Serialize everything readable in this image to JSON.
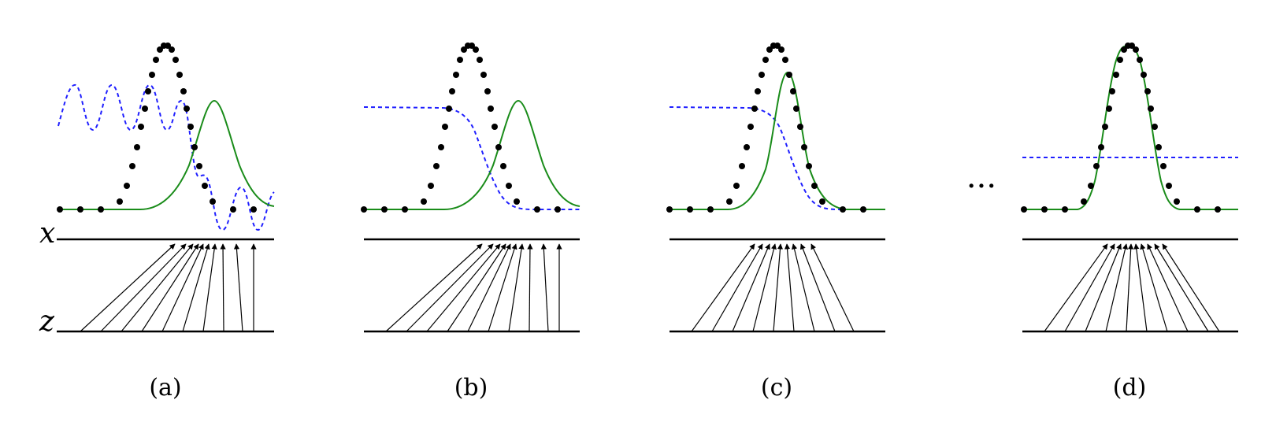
{
  "axis_labels": {
    "x": "x",
    "z": "z"
  },
  "ellipsis": "···",
  "colors": {
    "data_points": "#000000",
    "generator_density": "#1a8c1a",
    "discriminator": "#1f1fff",
    "lines": "#000000"
  },
  "panels": [
    {
      "caption": "(a)"
    },
    {
      "caption": "(b)"
    },
    {
      "caption": "(c)"
    },
    {
      "caption": "(d)"
    }
  ]
}
